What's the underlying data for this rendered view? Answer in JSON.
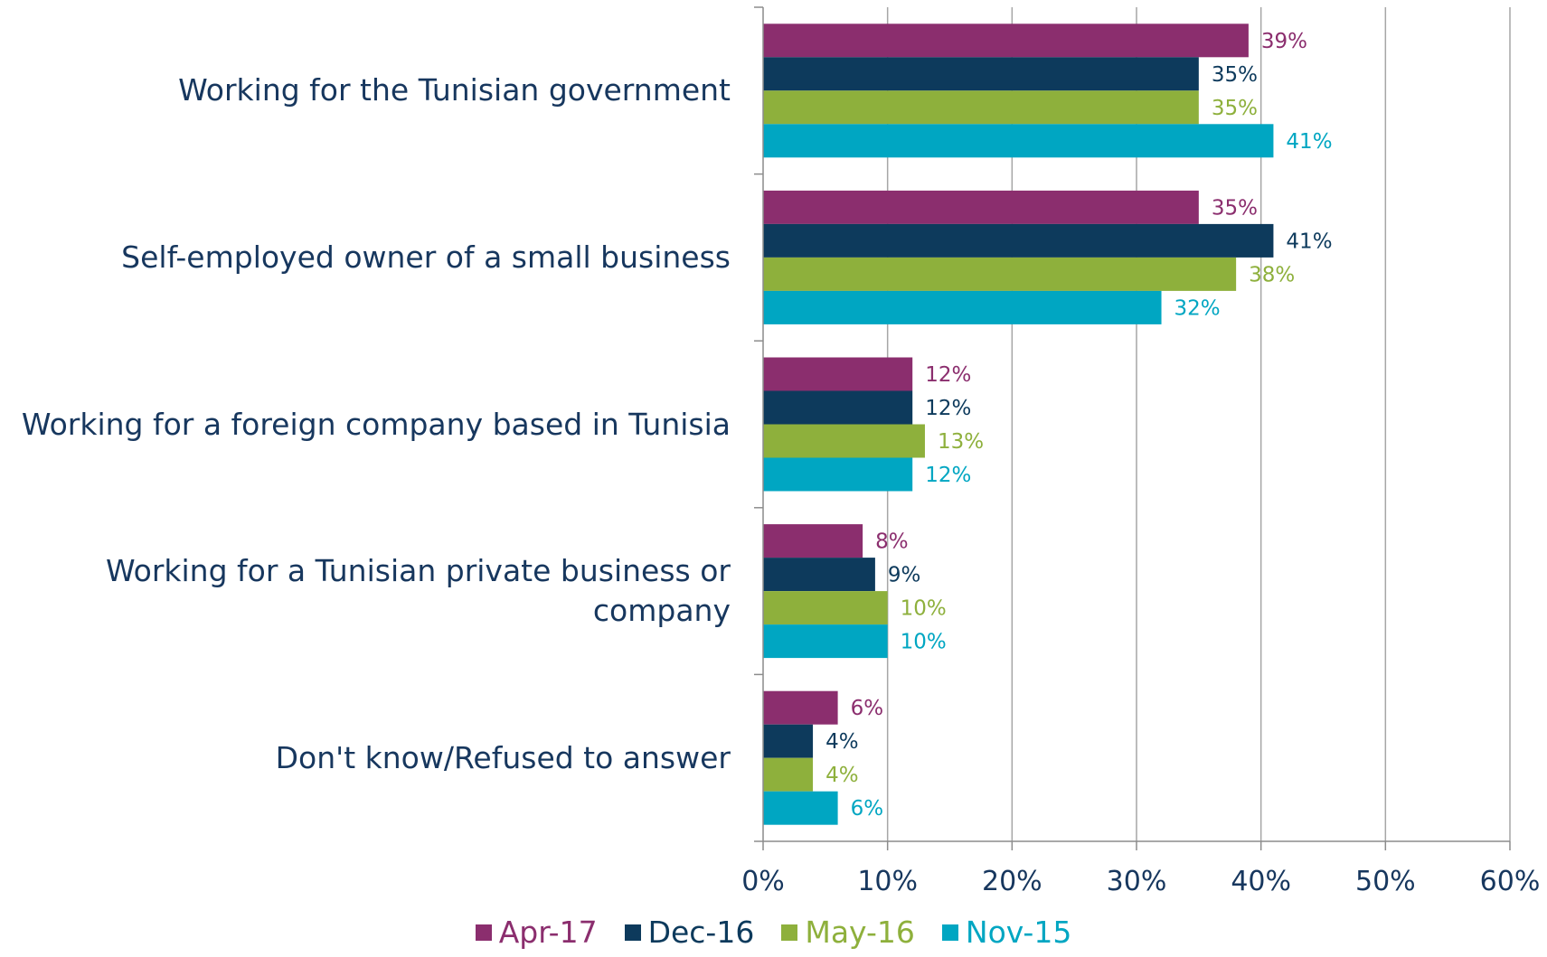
{
  "chart_data": {
    "type": "bar",
    "orientation": "horizontal",
    "categories": [
      "Working for the Tunisian government",
      "Self-employed owner of a small business",
      "Working for a foreign company based in Tunisia",
      "Working for a Tunisian private business or company",
      "Don't know/Refused to answer"
    ],
    "series": [
      {
        "name": "Apr-17",
        "color": "#8b2e6e",
        "values": [
          39,
          35,
          12,
          8,
          6
        ],
        "labels": [
          "39%",
          "35%",
          "12%",
          "8%",
          "6%"
        ]
      },
      {
        "name": "Dec-16",
        "color": "#0d3a5c",
        "values": [
          35,
          41,
          12,
          9,
          4
        ],
        "labels": [
          "35%",
          "41%",
          "12%",
          "9%",
          "4%"
        ]
      },
      {
        "name": "May-16",
        "color": "#8eb03c",
        "values": [
          35,
          38,
          13,
          10,
          4
        ],
        "labels": [
          "35%",
          "38%",
          "13%",
          "10%",
          "4%"
        ]
      },
      {
        "name": "Nov-15",
        "color": "#00a6c2",
        "values": [
          41,
          32,
          12,
          10,
          6
        ],
        "labels": [
          "41%",
          "32%",
          "12%",
          "10%",
          "6%"
        ]
      }
    ],
    "xlim": [
      0,
      60
    ],
    "xticks": [
      "0%",
      "10%",
      "20%",
      "30%",
      "40%",
      "50%",
      "60%"
    ],
    "grid": true,
    "legend_position": "bottom"
  }
}
